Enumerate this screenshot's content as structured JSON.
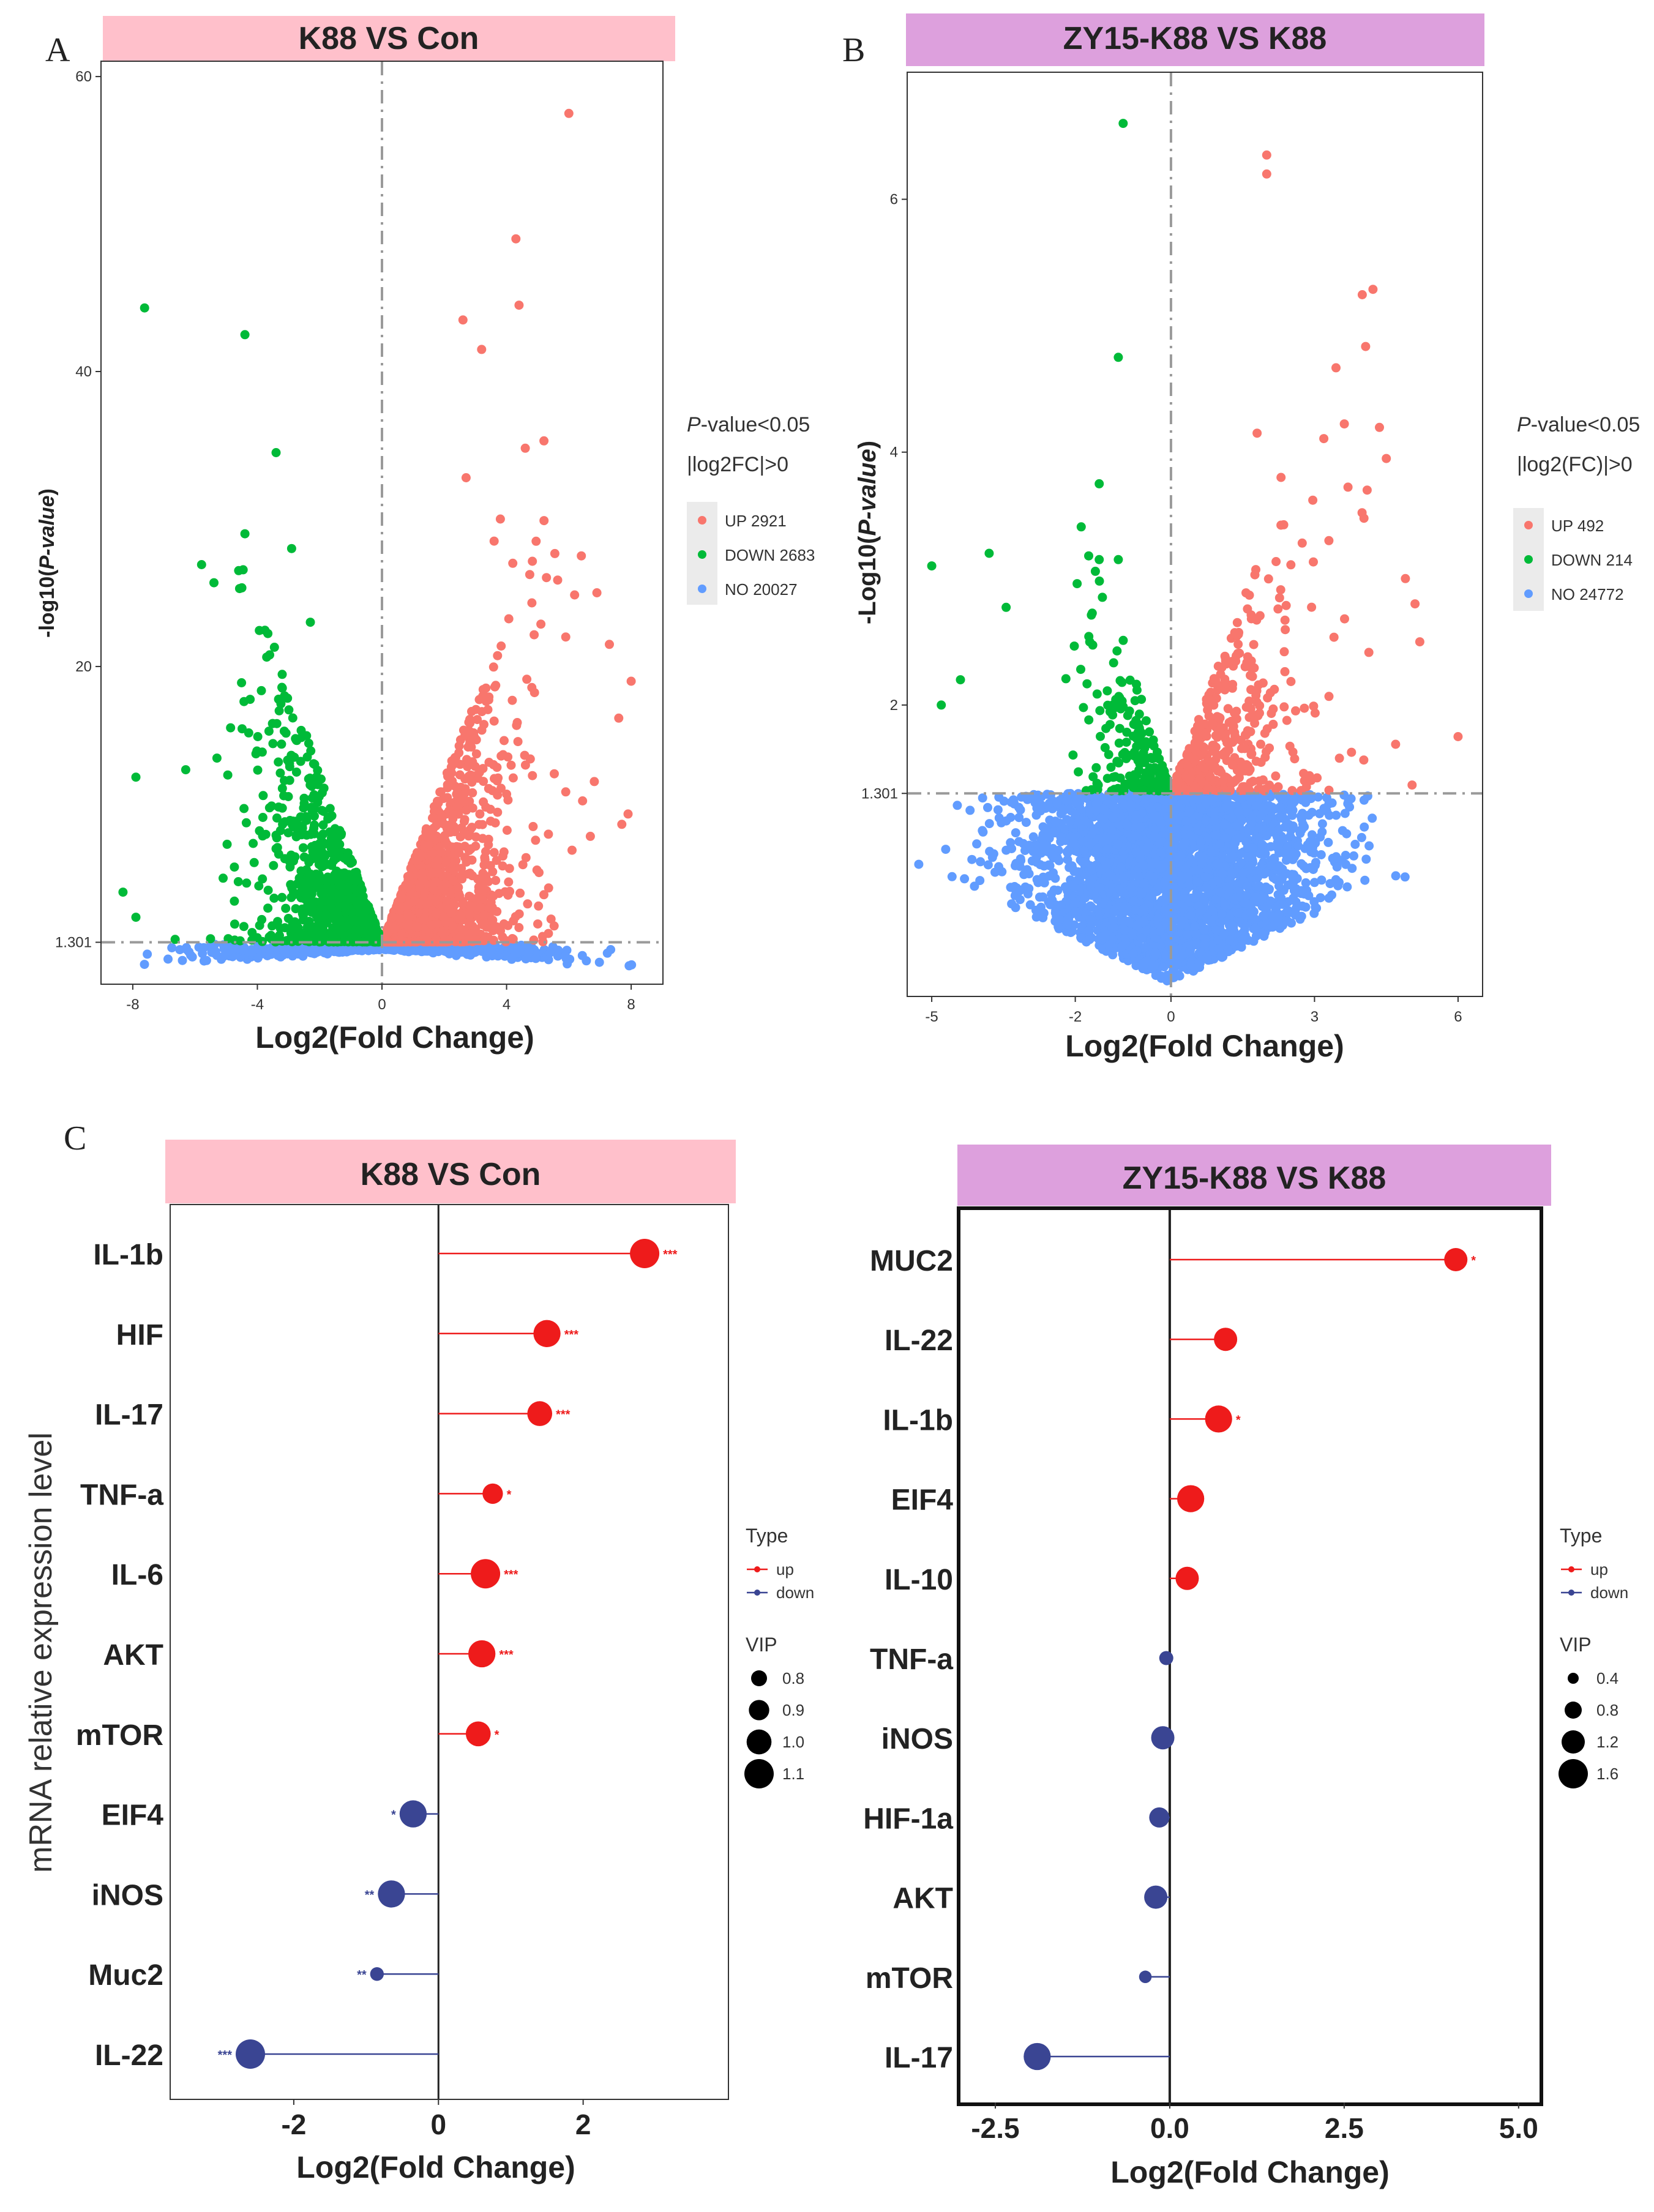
{
  "chart_data": [
    {
      "panel": "A",
      "type": "scatter",
      "title": "K88 VS Con",
      "title_color": "#ffc0cb",
      "xlabel": "Log2(Fold Change)",
      "ylabel_prefix": "-log10(",
      "ylabel_italic": "P-value",
      "ylabel_suffix": ")",
      "xlim": [
        -9,
        9
      ],
      "ylim": [
        -1.5,
        61
      ],
      "xticks": [
        -8,
        -4,
        0,
        4,
        8
      ],
      "yticks": [
        1.301,
        20,
        40,
        60
      ],
      "ytick_labels": [
        "1.301",
        "20",
        "40",
        "60"
      ],
      "threshold_y": 1.301,
      "threshold_x": 0,
      "legend": {
        "line1_italic": "P",
        "line1_rest": "-value<0.05",
        "line2": "|log2FC|>0",
        "entries": [
          {
            "label": "UP 2921",
            "color": "#f8766d"
          },
          {
            "label": "DOWN 2683",
            "color": "#00ba38"
          },
          {
            "label": "NO 20027",
            "color": "#619cff"
          }
        ]
      },
      "counts": {
        "up": 2921,
        "down": 2683,
        "no": 20027
      },
      "points": [
        {
          "x": 6.0,
          "y": 57.5,
          "group": "up"
        },
        {
          "x": 4.3,
          "y": 49.0,
          "group": "up"
        },
        {
          "x": 4.4,
          "y": 44.5,
          "group": "up"
        },
        {
          "x": 2.6,
          "y": 43.5,
          "group": "up"
        },
        {
          "x": 3.2,
          "y": 41.5,
          "group": "up"
        },
        {
          "x": 5.2,
          "y": 35.3,
          "group": "up"
        },
        {
          "x": 4.6,
          "y": 34.8,
          "group": "up"
        },
        {
          "x": 2.7,
          "y": 32.8,
          "group": "up"
        },
        {
          "x": 3.8,
          "y": 30.0,
          "group": "up"
        },
        {
          "x": 3.6,
          "y": 28.5,
          "group": "up"
        },
        {
          "x": 6.4,
          "y": 27.5,
          "group": "up"
        },
        {
          "x": 4.2,
          "y": 27.0,
          "group": "up"
        },
        {
          "x": 6.9,
          "y": 25.0,
          "group": "up"
        },
        {
          "x": 5.9,
          "y": 22.0,
          "group": "up"
        },
        {
          "x": 7.3,
          "y": 21.5,
          "group": "up"
        },
        {
          "x": 8.0,
          "y": 19.0,
          "group": "up"
        },
        {
          "x": 7.6,
          "y": 16.5,
          "group": "up"
        },
        {
          "x": 5.9,
          "y": 11.5,
          "group": "up"
        },
        {
          "x": 7.9,
          "y": 10.0,
          "group": "up"
        },
        {
          "x": 7.7,
          "y": 9.3,
          "group": "up"
        },
        {
          "x": -4.4,
          "y": 42.5,
          "group": "down"
        },
        {
          "x": -3.4,
          "y": 34.5,
          "group": "down"
        },
        {
          "x": -4.4,
          "y": 29.0,
          "group": "down"
        },
        {
          "x": -2.9,
          "y": 28.0,
          "group": "down"
        },
        {
          "x": -4.6,
          "y": 26.5,
          "group": "down"
        },
        {
          "x": -2.3,
          "y": 23.0,
          "group": "down"
        },
        {
          "x": -7.9,
          "y": 12.5,
          "group": "down"
        },
        {
          "x": -6.3,
          "y": 13.0,
          "group": "down"
        },
        {
          "x": -7.9,
          "y": 3.0,
          "group": "down"
        }
      ]
    },
    {
      "panel": "B",
      "type": "scatter",
      "title": "ZY15-K88 VS K88",
      "title_color": "#dda0dd",
      "xlabel": "Log2(Fold Change)",
      "ylabel_prefix": "-Log10(",
      "ylabel_italic": "P-value",
      "ylabel_suffix": ")",
      "xlim": [
        -5.5,
        6.5
      ],
      "ylim": [
        -0.3,
        7.0
      ],
      "xticks": [
        -5,
        -2,
        0,
        3,
        6
      ],
      "yticks": [
        1.301,
        2,
        4,
        6
      ],
      "ytick_labels": [
        "1.301",
        "2",
        "4",
        "6"
      ],
      "threshold_y": 1.301,
      "threshold_x": 0,
      "legend": {
        "line1_italic": "P",
        "line1_rest": "-value<0.05",
        "line2": "|log2(FC)|>0",
        "entries": [
          {
            "label": "UP 492",
            "color": "#f8766d"
          },
          {
            "label": "DOWN 214",
            "color": "#00ba38"
          },
          {
            "label": "NO 24772",
            "color": "#619cff"
          }
        ]
      },
      "counts": {
        "up": 492,
        "down": 214,
        "no": 24772
      },
      "points": [
        {
          "x": 2.0,
          "y": 6.35,
          "group": "up"
        },
        {
          "x": 2.0,
          "y": 6.2,
          "group": "up"
        },
        {
          "x": 1.8,
          "y": 4.15,
          "group": "up"
        },
        {
          "x": 4.5,
          "y": 3.95,
          "group": "up"
        },
        {
          "x": 4.1,
          "y": 3.7,
          "group": "up"
        },
        {
          "x": 2.3,
          "y": 3.8,
          "group": "up"
        },
        {
          "x": 3.3,
          "y": 3.3,
          "group": "up"
        },
        {
          "x": 4.9,
          "y": 3.0,
          "group": "up"
        },
        {
          "x": 5.2,
          "y": 2.5,
          "group": "up"
        },
        {
          "x": 6.0,
          "y": 1.75,
          "group": "up"
        },
        {
          "x": 5.1,
          "y": 2.8,
          "group": "up"
        },
        {
          "x": -1.0,
          "y": 6.6,
          "group": "down"
        },
        {
          "x": -1.1,
          "y": 4.75,
          "group": "down"
        },
        {
          "x": -1.5,
          "y": 3.75,
          "group": "down"
        },
        {
          "x": -1.5,
          "y": 3.15,
          "group": "down"
        },
        {
          "x": -1.1,
          "y": 3.15,
          "group": "down"
        },
        {
          "x": -3.8,
          "y": 3.2,
          "group": "down"
        },
        {
          "x": -5.0,
          "y": 3.1,
          "group": "down"
        },
        {
          "x": -4.8,
          "y": 2.0,
          "group": "down"
        },
        {
          "x": -4.4,
          "y": 2.2,
          "group": "down"
        }
      ]
    },
    {
      "panel": "C-left",
      "type": "lollipop",
      "title": "K88 VS Con",
      "title_color": "#ffc0cb",
      "xlabel": "Log2(Fold Change)",
      "ylabel": "mRNA relative expression level",
      "xlim": [
        -3.7,
        4.0
      ],
      "xticks": [
        -2,
        0,
        2
      ],
      "xtick_labels": [
        "-2",
        "0",
        "2"
      ],
      "categories": [
        "IL-1b",
        "HIF",
        "IL-17",
        "TNF-a",
        "IL-6",
        "AKT",
        "mTOR",
        "EIF4",
        "iNOS",
        "Muc2",
        "IL-22"
      ],
      "values": [
        2.85,
        1.5,
        1.4,
        0.75,
        0.65,
        0.6,
        0.55,
        -0.35,
        -0.65,
        -0.85,
        -2.6
      ],
      "type_labels": [
        "up",
        "up",
        "up",
        "up",
        "up",
        "up",
        "up",
        "down",
        "down",
        "down",
        "down"
      ],
      "vip": [
        1.1,
        1.05,
        1.0,
        0.9,
        1.1,
        1.05,
        1.0,
        1.05,
        1.05,
        0.75,
        1.1
      ],
      "significance": [
        "***",
        "***",
        "***",
        "*",
        "***",
        "***",
        "*",
        "*",
        "**",
        "**",
        "***"
      ],
      "legend": {
        "type_title": "Type",
        "type_entries": [
          {
            "label": "up",
            "color": "#ee1b1b"
          },
          {
            "label": "down",
            "color": "#3a4593"
          }
        ],
        "vip_title": "VIP",
        "vip_entries": [
          "0.8",
          "0.9",
          "1.0",
          "1.1"
        ],
        "vip_values": [
          0.8,
          0.9,
          1.0,
          1.1
        ]
      }
    },
    {
      "panel": "C-right",
      "type": "lollipop",
      "title": "ZY15-K88 VS K88",
      "title_color": "#dda0dd",
      "xlabel": "Log2(Fold Change)",
      "ylabel": "",
      "xlim": [
        -3.0,
        5.3
      ],
      "xticks": [
        -2.5,
        0.0,
        2.5,
        5.0
      ],
      "xtick_labels": [
        "-2.5",
        "0.0",
        "2.5",
        "5.0"
      ],
      "categories": [
        "MUC2",
        "IL-22",
        "IL-1b",
        "EIF4",
        "IL-10",
        "TNF-a",
        "iNOS",
        "HIF-1a",
        "AKT",
        "mTOR",
        "IL-17"
      ],
      "values": [
        4.1,
        0.8,
        0.7,
        0.3,
        0.25,
        -0.05,
        -0.1,
        -0.15,
        -0.2,
        -0.35,
        -1.9
      ],
      "type_labels": [
        "up",
        "up",
        "up",
        "up",
        "up",
        "down",
        "down",
        "down",
        "down",
        "down",
        "down"
      ],
      "vip": [
        1.2,
        1.2,
        1.45,
        1.45,
        1.2,
        0.6,
        1.2,
        1.0,
        1.2,
        0.5,
        1.45
      ],
      "significance": [
        "*",
        "",
        "*",
        "",
        "",
        "",
        "",
        "",
        "",
        "",
        ""
      ],
      "legend": {
        "type_title": "Type",
        "type_entries": [
          {
            "label": "up",
            "color": "#ee1b1b"
          },
          {
            "label": "down",
            "color": "#3a4593"
          }
        ],
        "vip_title": "VIP",
        "vip_entries": [
          "0.4",
          "0.8",
          "1.2",
          "1.6"
        ],
        "vip_values": [
          0.4,
          0.8,
          1.2,
          1.6
        ]
      }
    }
  ],
  "panel_letters": [
    "A",
    "B",
    "C"
  ]
}
